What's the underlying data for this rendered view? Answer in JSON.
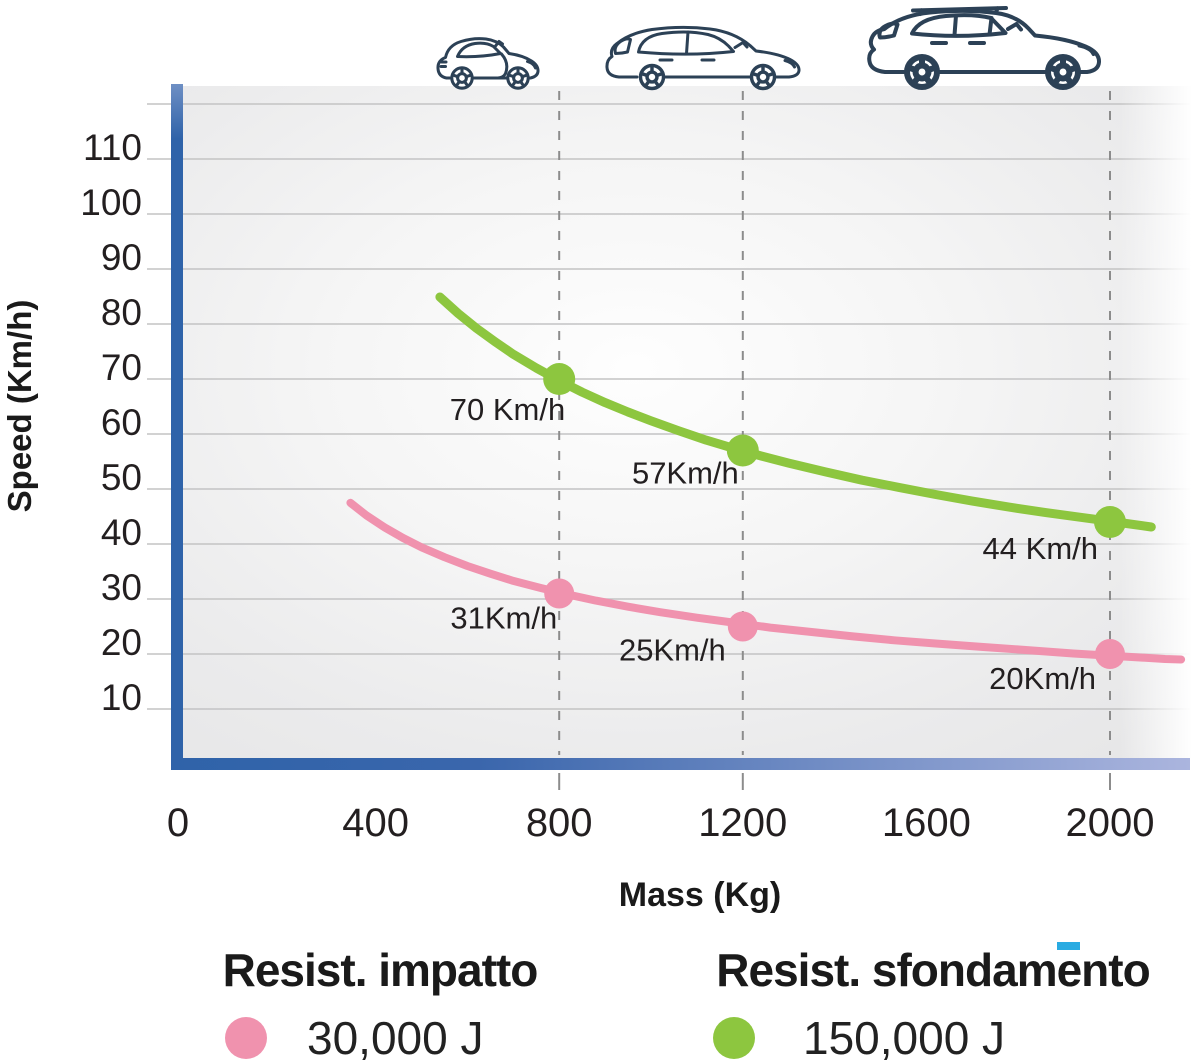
{
  "page": {
    "background": "#ffffff"
  },
  "colors": {
    "axis_blue": "#2F63A9",
    "axis_blue_light": "#ABB5DE",
    "grid_gray": "#c3c3c4",
    "dashed_gray": "#8c8c8c",
    "text": "#231f20",
    "car_outline": "#2C4156",
    "cyan_accent": "#29ABE2",
    "pink": "#F092AE",
    "green": "#8DC63F"
  },
  "icons": {
    "cars": [
      "small-city-car",
      "hatchback",
      "suv"
    ],
    "car_color": "#2C4156"
  },
  "axes": {
    "y_title": "Speed (Km/h)",
    "x_title": "Mass (Kg)"
  },
  "chart_data": {
    "type": "line",
    "title": "",
    "xlabel": "Mass (Kg)",
    "ylabel": "Speed (Km/h)",
    "xlim": [
      0,
      2200
    ],
    "ylim": [
      0,
      120
    ],
    "grid": "horizontal",
    "x_ticks": [
      0,
      400,
      800,
      1200,
      1600,
      2000
    ],
    "y_ticks": [
      10,
      20,
      30,
      40,
      50,
      60,
      70,
      80,
      90,
      100,
      110
    ],
    "grid_speeds": [
      10,
      20,
      30,
      40,
      50,
      60,
      70,
      80,
      90,
      100,
      110,
      120
    ],
    "dashed_guides_x": [
      800,
      1200,
      2000
    ],
    "legend_position": "bottom",
    "series": [
      {
        "name": "Resist. impatto",
        "energy_label": "30,000 J",
        "color": "#F092AE",
        "line_width": 8,
        "marker_radius": 15,
        "points": [
          [
            345,
            47.5
          ],
          [
            380,
            45.2
          ],
          [
            420,
            43.0
          ],
          [
            460,
            41.1
          ],
          [
            500,
            39.4
          ],
          [
            550,
            37.6
          ],
          [
            600,
            36.0
          ],
          [
            650,
            34.6
          ],
          [
            700,
            33.3
          ],
          [
            760,
            32.0
          ],
          [
            820,
            30.8
          ],
          [
            880,
            29.7
          ],
          [
            950,
            28.6
          ],
          [
            1020,
            27.6
          ],
          [
            1100,
            26.6
          ],
          [
            1180,
            25.7
          ],
          [
            1260,
            24.8
          ],
          [
            1350,
            24.0
          ],
          [
            1440,
            23.2
          ],
          [
            1530,
            22.5
          ],
          [
            1620,
            21.9
          ],
          [
            1720,
            21.3
          ],
          [
            1820,
            20.7
          ],
          [
            1920,
            20.1
          ],
          [
            2020,
            19.6
          ],
          [
            2120,
            19.1
          ],
          [
            2155,
            19.0
          ]
        ],
        "markers": [
          {
            "mass": 800,
            "speed_kmh": 31,
            "label": "31Km/h",
            "dx": -2,
            "dy": 35
          },
          {
            "mass": 1200,
            "speed_kmh": 25,
            "label": "25Km/h",
            "dx": -17,
            "dy": 34
          },
          {
            "mass": 2000,
            "speed_kmh": 20,
            "label": "20Km/h",
            "dx": -14,
            "dy": 35
          }
        ]
      },
      {
        "name": "Resist. sfondamento",
        "energy_label": "150,000 J",
        "color": "#8DC63F",
        "line_width": 9,
        "marker_radius": 16,
        "points": [
          [
            540,
            84.9
          ],
          [
            580,
            81.9
          ],
          [
            620,
            79.2
          ],
          [
            660,
            76.8
          ],
          [
            700,
            74.5
          ],
          [
            750,
            72.0
          ],
          [
            800,
            69.7
          ],
          [
            850,
            67.6
          ],
          [
            900,
            65.7
          ],
          [
            950,
            64.0
          ],
          [
            1000,
            62.4
          ],
          [
            1060,
            60.6
          ],
          [
            1120,
            58.9
          ],
          [
            1180,
            57.4
          ],
          [
            1240,
            56.0
          ],
          [
            1300,
            54.7
          ],
          [
            1380,
            53.1
          ],
          [
            1460,
            51.6
          ],
          [
            1540,
            50.3
          ],
          [
            1620,
            49.0
          ],
          [
            1700,
            47.8
          ],
          [
            1780,
            46.7
          ],
          [
            1860,
            45.7
          ],
          [
            1940,
            44.8
          ],
          [
            2020,
            43.9
          ],
          [
            2090,
            43.1
          ]
        ],
        "markers": [
          {
            "mass": 800,
            "speed_kmh": 70,
            "label": "70 Km/h",
            "dx": 6,
            "dy": 41
          },
          {
            "mass": 1200,
            "speed_kmh": 57,
            "label": "57Km/h",
            "dx": -4,
            "dy": 33
          },
          {
            "mass": 2000,
            "speed_kmh": 44,
            "label": "44 Km/h",
            "dx": -12,
            "dy": 37
          }
        ]
      }
    ]
  },
  "legend": {
    "items": [
      {
        "title": "Resist. impatto",
        "value": "30,000 J",
        "color": "#F092AE"
      },
      {
        "title": "Resist. sfondamento",
        "value": "150,000 J",
        "color": "#8DC63F"
      }
    ]
  }
}
